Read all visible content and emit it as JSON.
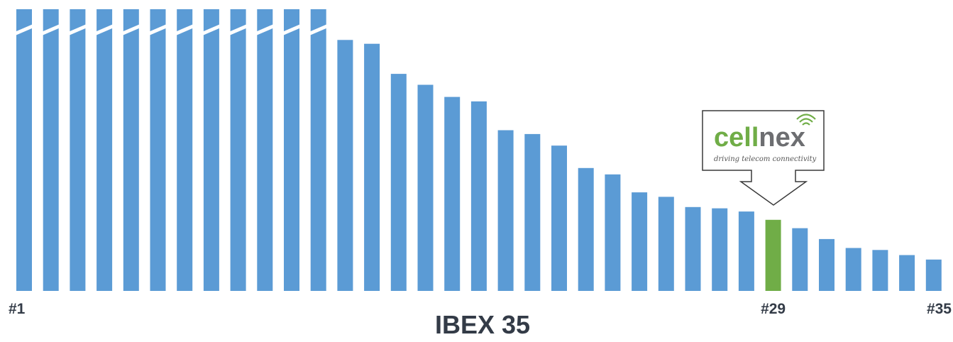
{
  "chart_data": {
    "type": "bar",
    "title": "IBEX 35",
    "x_range": [
      1,
      35
    ],
    "values": [
      440,
      440,
      440,
      440,
      440,
      440,
      440,
      440,
      440,
      440,
      440,
      440,
      392,
      386,
      339,
      322,
      303,
      296,
      251,
      245,
      227,
      192,
      182,
      154,
      147,
      131,
      129,
      124,
      111,
      98,
      81,
      67,
      64,
      56,
      49
    ],
    "broken_bars": [
      1,
      2,
      3,
      4,
      5,
      6,
      7,
      8,
      9,
      10,
      11,
      12
    ],
    "highlight_index": 29,
    "rank_labels": [
      {
        "index": 1,
        "text": "#1"
      },
      {
        "index": 29,
        "text": "#29"
      },
      {
        "index": 35,
        "text": "#35"
      }
    ],
    "colors": {
      "bar": "#5b9bd5",
      "highlight": "#70ad47",
      "text": "#333b47"
    }
  },
  "callout": {
    "logo_cell": "cell",
    "logo_nex": "nex",
    "tagline": "driving telecom connectivity",
    "colors": {
      "cell": "#70ad47",
      "nex": "#6d6e71",
      "signal": "#70ad47"
    }
  }
}
